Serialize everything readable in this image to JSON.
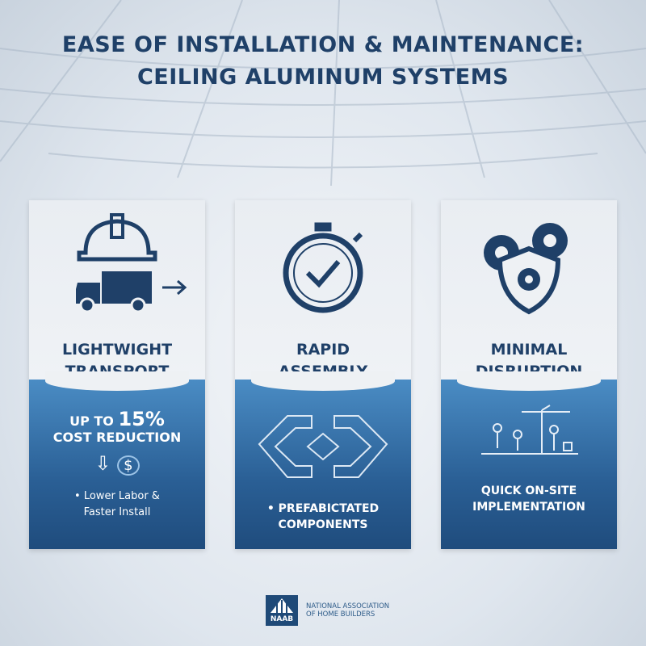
{
  "title": {
    "line1": "EASE OF INSTALLATION & MAINTENANCE:",
    "line2": "CEILING ALUMINUM SYSTEMS"
  },
  "colors": {
    "title": "#1f4068",
    "card_blue": "#2a5f95",
    "background": "#e4eaf0"
  },
  "cards": [
    {
      "icon": "hard-hat-truck-arrow-icon",
      "heading_line1": "LIGHTWIGHT",
      "heading_line2": "TRANSPORT",
      "stat_prefix": "UP TO",
      "stat_value": "15%",
      "stat_label": "COST REDUCTION",
      "sub_icon": "down-arrow-dollar-icon",
      "dollar": "$",
      "bullet": "•",
      "note_line1": "Lower Labor &",
      "note_line2": "Faster Install"
    },
    {
      "icon": "stopwatch-check-icon",
      "heading_line1": "RAPID",
      "heading_line2": "ASSEMBLY",
      "sub_icon": "prefab-frame-icon",
      "bullet": "•",
      "note_line1": "PREFABICTATED",
      "note_line2": "COMPONENTS"
    },
    {
      "icon": "gears-shield-icon",
      "heading_line1": "MINIMAL",
      "heading_line2": "DISRUPTION",
      "sub_icon": "construction-site-icon",
      "note_line1": "QUICK ON-SITE",
      "note_line2": "IMPLEMENTATION"
    }
  ],
  "footer": {
    "logo_text": "NAAB",
    "org_line1": "NATIONAL ASSOCIATION",
    "org_line2": "OF HOME BUILDERS"
  }
}
